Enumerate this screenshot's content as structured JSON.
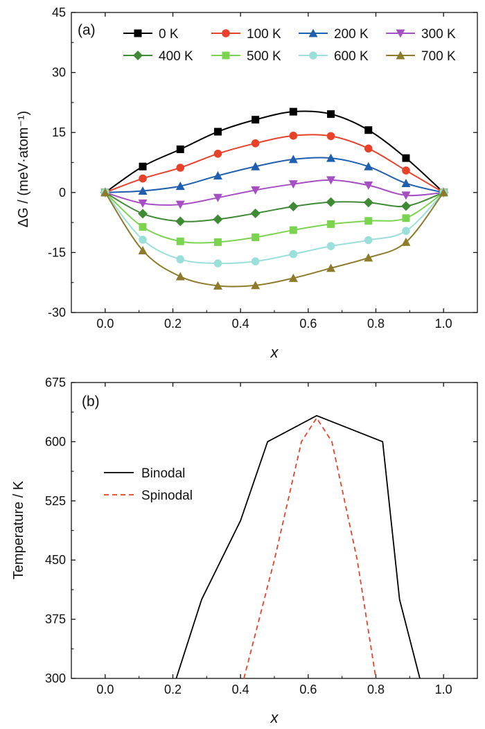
{
  "chart_data": [
    {
      "type": "line",
      "panel_label": "(a)",
      "xlabel": "x",
      "ylabel": "ΔG / (meV·atom⁻¹)",
      "xlim": [
        -0.1,
        1.1
      ],
      "ylim": [
        -30,
        45
      ],
      "xticks": [
        "0.0",
        "0.2",
        "0.4",
        "0.6",
        "0.8",
        "1.0"
      ],
      "yticks": [
        "-30",
        "-15",
        "0",
        "15",
        "30",
        "45"
      ],
      "grid": false,
      "legend_position": "top",
      "x": [
        0.0,
        0.111,
        0.222,
        0.333,
        0.444,
        0.556,
        0.667,
        0.778,
        0.889,
        1.0
      ],
      "series": [
        {
          "name": "0 K",
          "color": "#000000",
          "marker": "square",
          "values": [
            0,
            6.5,
            10.8,
            15.2,
            18.2,
            20.2,
            19.6,
            15.6,
            8.6,
            0
          ]
        },
        {
          "name": "100 K",
          "color": "#e8412a",
          "marker": "circle",
          "values": [
            0,
            3.5,
            6.2,
            9.7,
            12.3,
            14.2,
            14.1,
            11.0,
            5.5,
            0
          ]
        },
        {
          "name": "200 K",
          "color": "#1f5fb0",
          "marker": "triangle-up",
          "values": [
            0,
            0.4,
            1.6,
            4.2,
            6.5,
            8.3,
            8.6,
            6.5,
            2.3,
            0
          ]
        },
        {
          "name": "300 K",
          "color": "#a64fc5",
          "marker": "triangle-down",
          "values": [
            0,
            -2.7,
            -3.0,
            -1.3,
            0.6,
            2.1,
            3.1,
            1.8,
            -0.7,
            0
          ]
        },
        {
          "name": "400 K",
          "color": "#3f8a35",
          "marker": "diamond",
          "values": [
            0,
            -5.3,
            -7.2,
            -6.7,
            -5.2,
            -3.5,
            -2.4,
            -2.5,
            -3.4,
            0
          ]
        },
        {
          "name": "500 K",
          "color": "#7ad44f",
          "marker": "square",
          "values": [
            0,
            -8.6,
            -12.2,
            -12.4,
            -11.2,
            -9.4,
            -7.9,
            -7.1,
            -6.4,
            0
          ]
        },
        {
          "name": "600 K",
          "color": "#9adfd9",
          "marker": "circle",
          "values": [
            0,
            -11.8,
            -16.7,
            -17.7,
            -17.2,
            -15.4,
            -13.4,
            -11.9,
            -9.6,
            0
          ]
        },
        {
          "name": "700 K",
          "color": "#8d7b2b",
          "marker": "triangle-up",
          "values": [
            0,
            -14.5,
            -21.0,
            -23.3,
            -23.2,
            -21.4,
            -18.9,
            -16.3,
            -12.4,
            0
          ]
        }
      ]
    },
    {
      "type": "line",
      "panel_label": "(b)",
      "xlabel": "x",
      "ylabel": "Temperature / K",
      "xlim": [
        -0.1,
        1.1
      ],
      "ylim": [
        300,
        675
      ],
      "xticks": [
        "0.0",
        "0.2",
        "0.4",
        "0.6",
        "0.8",
        "1.0"
      ],
      "yticks": [
        "300",
        "375",
        "450",
        "525",
        "600",
        "675"
      ],
      "grid": false,
      "legend_position": "middle-left",
      "series": [
        {
          "name": "Binodal",
          "color": "#000000",
          "style": "solid",
          "points": [
            [
              0.21,
              300
            ],
            [
              0.285,
              400
            ],
            [
              0.4,
              500
            ],
            [
              0.48,
              600
            ],
            [
              0.625,
              633
            ],
            [
              0.82,
              600
            ],
            [
              0.87,
              400
            ],
            [
              0.93,
              300
            ]
          ]
        },
        {
          "name": "Spinodal",
          "color": "#e8412a",
          "style": "dashed",
          "points": [
            [
              0.41,
              300
            ],
            [
              0.5,
              450
            ],
            [
              0.58,
              600
            ],
            [
              0.625,
              630
            ],
            [
              0.67,
              600
            ],
            [
              0.745,
              450
            ],
            [
              0.8,
              300
            ]
          ]
        }
      ]
    }
  ]
}
